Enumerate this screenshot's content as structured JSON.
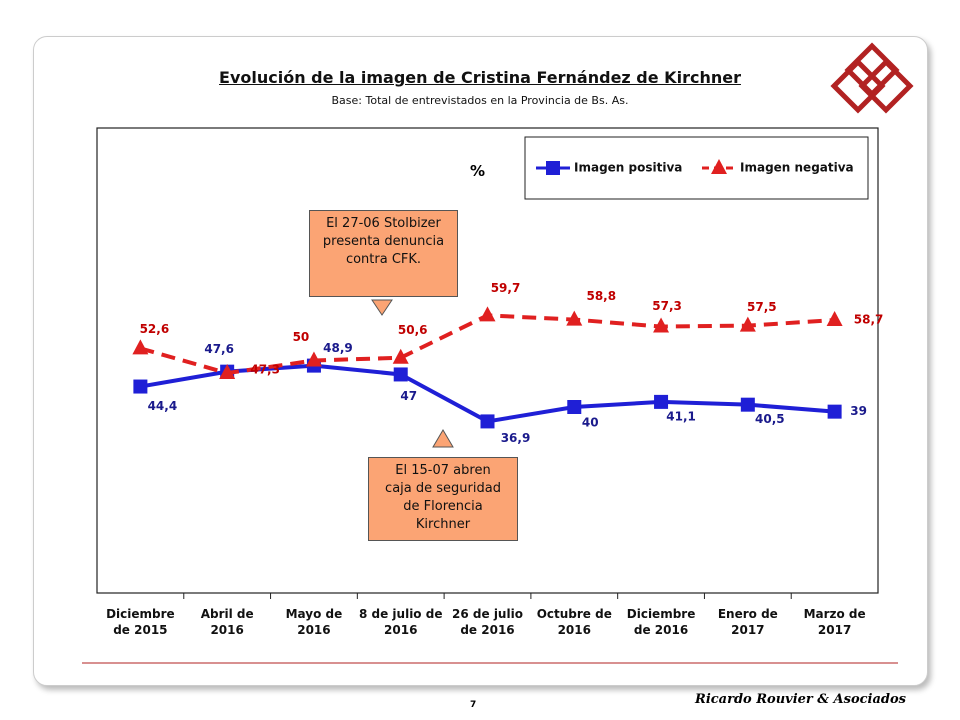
{
  "chart_data": {
    "type": "line",
    "title": "Evolución de la imagen de Cristina Fernández de Kirchner",
    "subtitle": "Base: Total de entrevistados en la Provincia de Bs. As.",
    "unit_label": "%",
    "categories": [
      "Diciembre\nde 2015",
      "Abril de\n2016",
      "Mayo de\n2016",
      "8 de julio de\n2016",
      "26 de julio\nde 2016",
      "Octubre de\n2016",
      "Diciembre\nde 2016",
      "Enero de\n2017",
      "Marzo de\n2017"
    ],
    "series": [
      {
        "name": "Imagen positiva",
        "color": "#1f1fd6",
        "label_color": "#1a1a8c",
        "marker": "square",
        "values": [
          44.4,
          47.6,
          48.9,
          47,
          36.9,
          40,
          41.1,
          40.5,
          39
        ],
        "value_labels": [
          "44,4",
          "47,6",
          "48,9",
          "47",
          "36,9",
          "40",
          "41,1",
          "40,5",
          "39"
        ]
      },
      {
        "name": "Imagen negativa",
        "color": "#e02020",
        "label_color": "#c00000",
        "marker": "triangle",
        "dashed": true,
        "values": [
          52.6,
          47.3,
          50,
          50.6,
          59.7,
          58.8,
          57.3,
          57.5,
          58.7
        ],
        "value_labels": [
          "52,6",
          "47,3",
          "50",
          "50,6",
          "59,7",
          "58,8",
          "57,3",
          "57,5",
          "58,7"
        ]
      }
    ],
    "ylim": [
      0,
      100
    ],
    "annotations": [
      "El 27-06 Stolbizer\npresenta denuncia\ncontra CFK.",
      "El 15-07 abren\ncaja de seguridad\nde Florencia\nKirchner"
    ]
  },
  "page_number": "7",
  "footer": "Ricardo Rouvier & Asociados"
}
